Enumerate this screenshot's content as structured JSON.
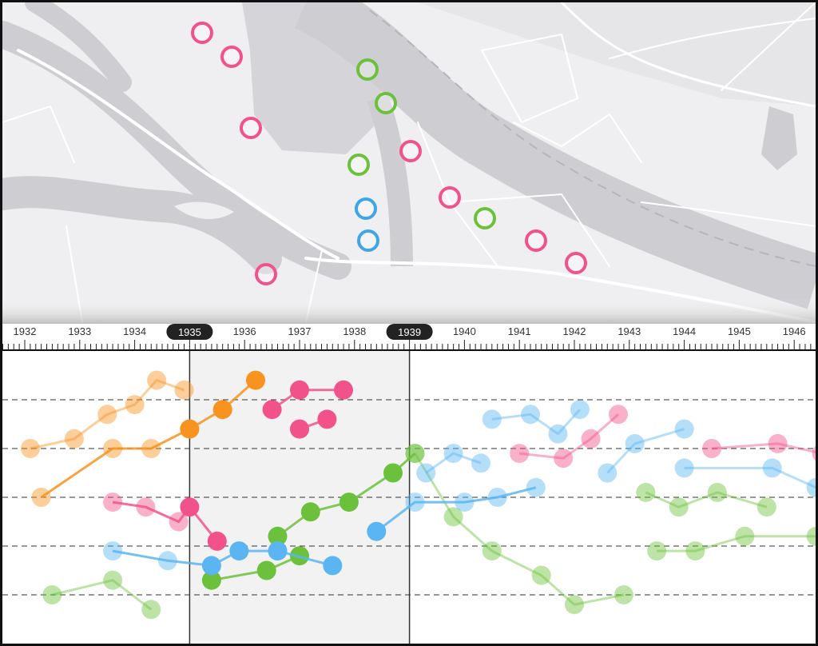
{
  "timeline": {
    "years": [
      "1932",
      "1933",
      "1934",
      "1935",
      "1936",
      "1937",
      "1938",
      "1939",
      "1940",
      "1941",
      "1942",
      "1943",
      "1944",
      "1945",
      "1946"
    ],
    "range_start": "1935",
    "range_end": "1939"
  },
  "colors": {
    "pink": "#f2528a",
    "green": "#6cc13c",
    "blue": "#3ea6e8",
    "orange": "#f7931e",
    "light_blue": "#5ab5f2"
  },
  "map_markers": [
    {
      "color": "pink"
    },
    {
      "color": "pink"
    },
    {
      "color": "pink"
    },
    {
      "color": "green"
    },
    {
      "color": "green"
    },
    {
      "color": "pink"
    },
    {
      "color": "green"
    },
    {
      "color": "blue"
    },
    {
      "color": "blue"
    },
    {
      "color": "pink"
    },
    {
      "color": "green"
    },
    {
      "color": "pink"
    },
    {
      "color": "pink"
    },
    {
      "color": "pink"
    }
  ],
  "chart_data": {
    "type": "scatter",
    "x_range": [
      "1932",
      "1946"
    ],
    "y_levels": 5,
    "grid": "dashed horizontal",
    "series": [
      {
        "color": "orange",
        "lines": [
          [
            [
              1932.1,
              3.0
            ],
            [
              1932.9,
              3.2
            ],
            [
              1933.5,
              3.7
            ],
            [
              1934.0,
              3.9
            ],
            [
              1934.4,
              4.4
            ],
            [
              1934.9,
              4.2
            ]
          ],
          [
            [
              1932.3,
              2.0
            ],
            [
              1933.6,
              3.0
            ],
            [
              1934.3,
              3.0
            ],
            [
              1935.0,
              3.4
            ],
            [
              1935.6,
              3.8
            ],
            [
              1936.2,
              4.4
            ]
          ]
        ]
      },
      {
        "color": "pink",
        "lines": [
          [
            [
              1936.5,
              3.8
            ],
            [
              1937.0,
              4.2
            ],
            [
              1937.8,
              4.2
            ]
          ],
          [
            [
              1937.0,
              3.4
            ],
            [
              1937.5,
              3.6
            ]
          ],
          [
            [
              1933.6,
              1.9
            ],
            [
              1934.2,
              1.8
            ],
            [
              1934.8,
              1.5
            ],
            [
              1935.0,
              1.8
            ],
            [
              1935.5,
              1.1
            ]
          ],
          [
            [
              1941.0,
              2.9
            ],
            [
              1941.8,
              2.8
            ],
            [
              1942.3,
              3.2
            ],
            [
              1942.8,
              3.7
            ]
          ],
          [
            [
              1944.5,
              3.0
            ],
            [
              1945.7,
              3.1
            ],
            [
              1946.5,
              2.9
            ]
          ]
        ]
      },
      {
        "color": "green",
        "lines": [
          [
            [
              1932.5,
              0.0
            ],
            [
              1933.6,
              0.3
            ],
            [
              1934.3,
              -0.3
            ]
          ],
          [
            [
              1935.4,
              0.3
            ],
            [
              1936.4,
              0.5
            ],
            [
              1937.0,
              0.8
            ]
          ],
          [
            [
              1936.6,
              1.2
            ],
            [
              1937.2,
              1.7
            ],
            [
              1937.9,
              1.9
            ],
            [
              1938.7,
              2.5
            ],
            [
              1939.1,
              2.9
            ]
          ],
          [
            [
              1939.1,
              2.9
            ],
            [
              1939.8,
              1.6
            ],
            [
              1940.5,
              0.9
            ],
            [
              1941.4,
              0.4
            ],
            [
              1942.0,
              -0.2
            ],
            [
              1942.9,
              0.0
            ]
          ],
          [
            [
              1943.3,
              2.1
            ],
            [
              1943.9,
              1.8
            ],
            [
              1944.6,
              2.1
            ],
            [
              1945.5,
              1.8
            ]
          ],
          [
            [
              1943.5,
              0.9
            ],
            [
              1944.2,
              0.9
            ],
            [
              1945.1,
              1.2
            ],
            [
              1946.4,
              1.2
            ]
          ]
        ]
      },
      {
        "color": "light_blue",
        "lines": [
          [
            [
              1933.6,
              0.9
            ],
            [
              1934.6,
              0.7
            ],
            [
              1935.4,
              0.6
            ],
            [
              1935.9,
              0.9
            ],
            [
              1936.6,
              0.9
            ],
            [
              1937.6,
              0.6
            ]
          ],
          [
            [
              1938.4,
              1.3
            ],
            [
              1939.1,
              1.9
            ],
            [
              1940.0,
              1.9
            ],
            [
              1940.6,
              2.0
            ],
            [
              1941.3,
              2.2
            ]
          ],
          [
            [
              1939.3,
              2.5
            ],
            [
              1939.8,
              2.9
            ],
            [
              1940.3,
              2.7
            ]
          ],
          [
            [
              1940.5,
              3.6
            ],
            [
              1941.2,
              3.7
            ],
            [
              1941.7,
              3.3
            ],
            [
              1942.1,
              3.8
            ]
          ],
          [
            [
              1942.6,
              2.5
            ],
            [
              1943.1,
              3.1
            ],
            [
              1944.0,
              3.4
            ]
          ],
          [
            [
              1944.0,
              2.6
            ],
            [
              1945.6,
              2.6
            ],
            [
              1946.4,
              2.2
            ]
          ]
        ]
      }
    ]
  }
}
